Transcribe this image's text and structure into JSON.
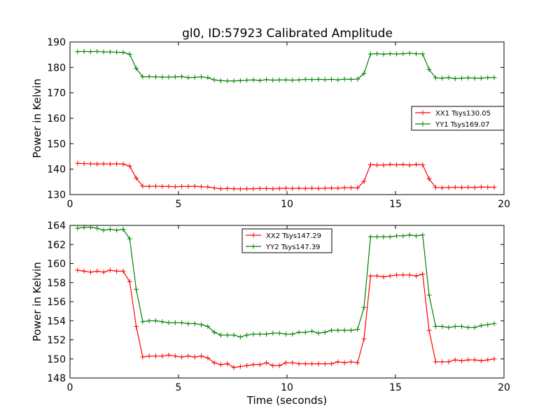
{
  "title": "gl0, ID:57923 Calibrated Amplitude",
  "chart_data": [
    {
      "type": "line",
      "title": "gl0, ID:57923 Calibrated Amplitude",
      "xlabel": "",
      "ylabel": "Power in Kelvin",
      "xlim": [
        0,
        20
      ],
      "ylim": [
        130,
        190
      ],
      "xticks": [
        0,
        5,
        10,
        15,
        20
      ],
      "yticks": [
        130,
        140,
        150,
        160,
        170,
        180,
        190
      ],
      "legend": "center-right",
      "x": [
        0.35,
        0.65,
        0.95,
        1.25,
        1.55,
        1.85,
        2.15,
        2.45,
        2.75,
        3.05,
        3.35,
        3.65,
        3.95,
        4.25,
        4.55,
        4.85,
        5.15,
        5.45,
        5.75,
        6.05,
        6.35,
        6.65,
        6.95,
        7.25,
        7.55,
        7.85,
        8.15,
        8.45,
        8.75,
        9.05,
        9.35,
        9.65,
        9.95,
        10.25,
        10.55,
        10.85,
        11.15,
        11.45,
        11.75,
        12.05,
        12.35,
        12.65,
        12.95,
        13.25,
        13.55,
        13.85,
        14.15,
        14.45,
        14.75,
        15.05,
        15.35,
        15.65,
        15.95,
        16.25,
        16.55,
        16.85,
        17.15,
        17.45,
        17.75,
        18.05,
        18.35,
        18.65,
        18.95,
        19.25,
        19.55
      ],
      "series": [
        {
          "name": "XX1 Tsys130.05",
          "color": "#ff0000",
          "values": [
            142.3,
            142.2,
            142.1,
            142.0,
            142.1,
            142.0,
            142.1,
            142.0,
            141.2,
            136.5,
            133.3,
            133.2,
            133.3,
            133.2,
            133.2,
            133.1,
            133.2,
            133.2,
            133.3,
            133.1,
            133.0,
            132.6,
            132.3,
            132.4,
            132.3,
            132.2,
            132.3,
            132.3,
            132.4,
            132.4,
            132.3,
            132.4,
            132.5,
            132.4,
            132.5,
            132.4,
            132.5,
            132.4,
            132.5,
            132.6,
            132.5,
            132.7,
            132.7,
            132.6,
            135.2,
            141.8,
            141.6,
            141.6,
            141.8,
            141.7,
            141.8,
            141.6,
            141.8,
            141.7,
            136.2,
            132.8,
            132.7,
            132.8,
            132.9,
            132.8,
            132.9,
            132.8,
            133.0,
            132.9,
            132.9
          ]
        },
        {
          "name": "YY1 Tsys169.07",
          "color": "#008000",
          "values": [
            186.2,
            186.3,
            186.2,
            186.3,
            186.1,
            186.1,
            186.0,
            185.9,
            185.2,
            179.6,
            176.3,
            176.4,
            176.3,
            176.2,
            176.2,
            176.3,
            176.4,
            176.0,
            176.1,
            176.3,
            176.0,
            175.1,
            174.8,
            174.7,
            174.7,
            174.8,
            175.0,
            175.1,
            174.9,
            175.2,
            175.0,
            175.1,
            175.1,
            175.0,
            175.1,
            175.3,
            175.2,
            175.3,
            175.2,
            175.3,
            175.1,
            175.4,
            175.3,
            175.4,
            177.6,
            185.3,
            185.4,
            185.2,
            185.4,
            185.3,
            185.4,
            185.6,
            185.4,
            185.3,
            179.2,
            175.9,
            175.8,
            176.0,
            175.6,
            175.8,
            175.9,
            175.8,
            175.8,
            176.0,
            176.0
          ]
        }
      ]
    },
    {
      "type": "line",
      "title": "",
      "xlabel": "Time (seconds)",
      "ylabel": "Power in Kelvin",
      "xlim": [
        0,
        20
      ],
      "ylim": [
        148,
        164
      ],
      "xticks": [
        0,
        5,
        10,
        15,
        20
      ],
      "yticks": [
        148,
        150,
        152,
        154,
        156,
        158,
        160,
        162,
        164
      ],
      "legend": "top-center",
      "x": [
        0.35,
        0.65,
        0.95,
        1.25,
        1.55,
        1.85,
        2.15,
        2.45,
        2.75,
        3.05,
        3.35,
        3.65,
        3.95,
        4.25,
        4.55,
        4.85,
        5.15,
        5.45,
        5.75,
        6.05,
        6.35,
        6.65,
        6.95,
        7.25,
        7.55,
        7.85,
        8.15,
        8.45,
        8.75,
        9.05,
        9.35,
        9.65,
        9.95,
        10.25,
        10.55,
        10.85,
        11.15,
        11.45,
        11.75,
        12.05,
        12.35,
        12.65,
        12.95,
        13.25,
        13.55,
        13.85,
        14.15,
        14.45,
        14.75,
        15.05,
        15.35,
        15.65,
        15.95,
        16.25,
        16.55,
        16.85,
        17.15,
        17.45,
        17.75,
        18.05,
        18.35,
        18.65,
        18.95,
        19.25,
        19.55
      ],
      "series": [
        {
          "name": "XX2 Tsys147.29",
          "color": "#ff0000",
          "values": [
            159.3,
            159.2,
            159.1,
            159.2,
            159.1,
            159.3,
            159.2,
            159.2,
            158.1,
            153.4,
            150.2,
            150.3,
            150.3,
            150.3,
            150.4,
            150.3,
            150.2,
            150.3,
            150.2,
            150.3,
            150.1,
            149.6,
            149.4,
            149.5,
            149.1,
            149.2,
            149.3,
            149.4,
            149.4,
            149.6,
            149.3,
            149.3,
            149.6,
            149.6,
            149.5,
            149.5,
            149.5,
            149.5,
            149.5,
            149.5,
            149.7,
            149.6,
            149.7,
            149.6,
            152.1,
            158.7,
            158.7,
            158.6,
            158.7,
            158.8,
            158.8,
            158.8,
            158.7,
            158.9,
            153.0,
            149.7,
            149.7,
            149.7,
            149.9,
            149.8,
            149.9,
            149.9,
            149.8,
            149.9,
            150.0
          ]
        },
        {
          "name": "YY2 Tsys147.39",
          "color": "#008000",
          "values": [
            163.7,
            163.8,
            163.8,
            163.7,
            163.5,
            163.6,
            163.5,
            163.6,
            162.6,
            157.3,
            153.9,
            154.0,
            154.0,
            153.9,
            153.8,
            153.8,
            153.8,
            153.7,
            153.7,
            153.6,
            153.4,
            152.8,
            152.5,
            152.5,
            152.5,
            152.3,
            152.5,
            152.6,
            152.6,
            152.6,
            152.7,
            152.7,
            152.6,
            152.6,
            152.8,
            152.8,
            152.9,
            152.7,
            152.8,
            153.0,
            153.0,
            153.0,
            153.0,
            153.1,
            155.4,
            162.8,
            162.8,
            162.8,
            162.8,
            162.9,
            162.9,
            163.0,
            162.9,
            163.0,
            156.7,
            153.4,
            153.4,
            153.3,
            153.4,
            153.4,
            153.3,
            153.3,
            153.5,
            153.6,
            153.7
          ]
        }
      ]
    }
  ]
}
